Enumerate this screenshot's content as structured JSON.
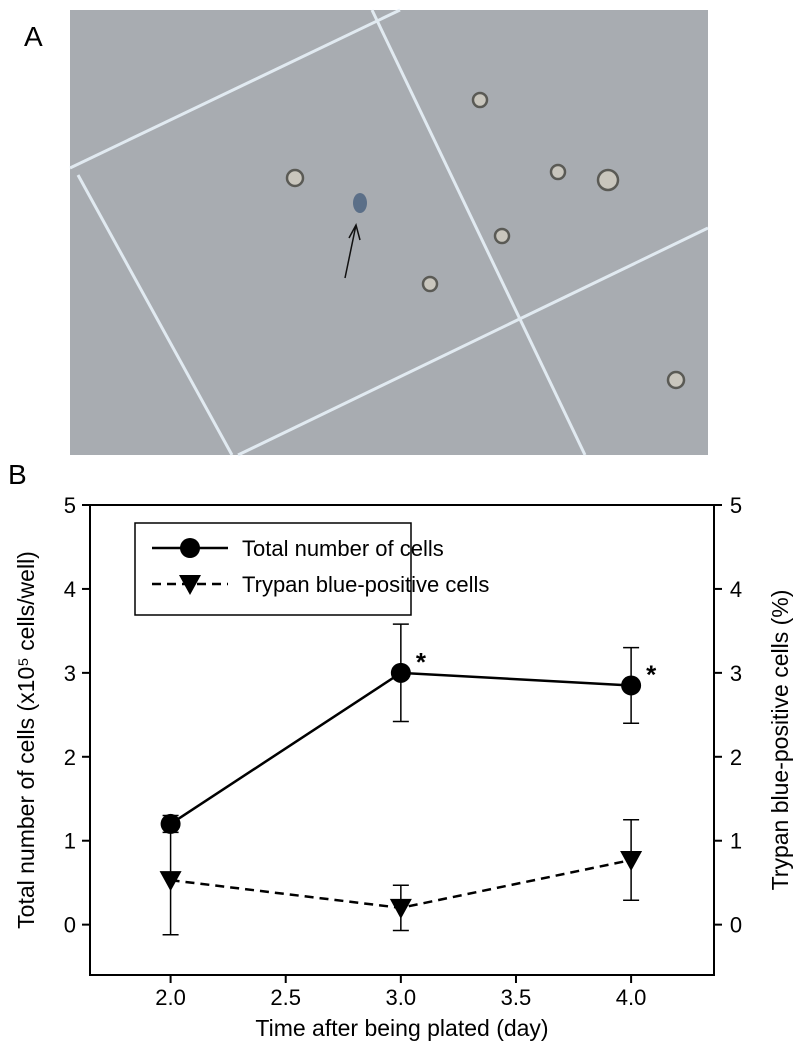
{
  "panel_labels": [
    "A",
    "B"
  ],
  "chart_data": {
    "type": "line",
    "x_label": "Time after being plated (day)",
    "y_label": "Total number of cells (x10⁵ cells/well)",
    "y2_label": "Trypan blue-positive cells (%)",
    "x": [
      2.0,
      3.0,
      4.0
    ],
    "xlim": [
      1.65,
      4.36
    ],
    "xticks": [
      {
        "value": 2,
        "label": "2.0"
      },
      {
        "value": 2.5,
        "label": "2.5"
      },
      {
        "value": 3,
        "label": "3.0"
      },
      {
        "value": 3.5,
        "label": "3.5"
      },
      {
        "value": 4,
        "label": "4.0"
      }
    ],
    "ylim": [
      -0.6,
      5
    ],
    "yticks": [
      0,
      1,
      2,
      3,
      4,
      5
    ],
    "y2lim": [
      -0.6,
      5
    ],
    "y2ticks": [
      0,
      1,
      2,
      3,
      4,
      5
    ],
    "series": [
      {
        "name": "Total number of cells",
        "color": "#000000",
        "marker": "circle",
        "dashed": false,
        "values": [
          1.2,
          3.0,
          2.85
        ],
        "errors": [
          0.1,
          0.58,
          0.45
        ]
      },
      {
        "name": "Trypan blue-positive cells",
        "color": "#000000",
        "marker": "triangle-down",
        "dashed": true,
        "axis": "y2",
        "values": [
          0.53,
          0.2,
          0.77
        ],
        "errors": [
          0.65,
          0.27,
          0.48
        ]
      }
    ],
    "annotations": [
      {
        "text": "*",
        "x": 3.0,
        "y": 3.0
      },
      {
        "text": "*",
        "x": 4.0,
        "y": 2.85
      }
    ],
    "legend": "upper left"
  }
}
